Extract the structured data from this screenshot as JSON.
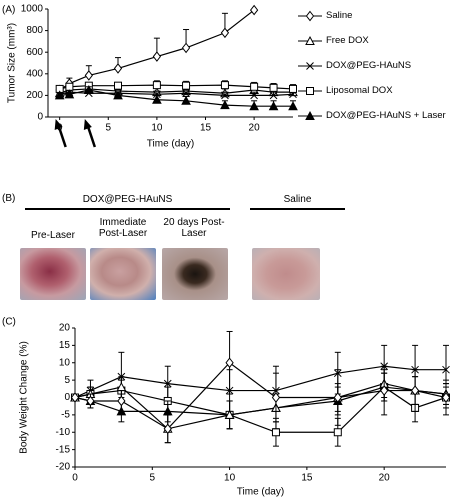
{
  "chart_data": [
    {
      "type": "line",
      "label": "(A)",
      "xlabel": "Time (day)",
      "ylabel": "Tumor Size (mm³)",
      "x": [
        0,
        1,
        3,
        6,
        10,
        13,
        17,
        20,
        22,
        24
      ],
      "xlim": [
        -1.2,
        24
      ],
      "xticks": [
        0,
        5,
        10,
        15,
        20
      ],
      "ylim": [
        0,
        1000
      ],
      "yticks": [
        0,
        200,
        400,
        600,
        800,
        1000
      ],
      "error_direction": "up",
      "legend": true,
      "treatment_days": [
        0,
        3
      ],
      "series": [
        {
          "name": "Saline",
          "color": "#000000",
          "marker": "diamond",
          "values": [
            250,
            310,
            385,
            450,
            560,
            640,
            780,
            990,
            null,
            null
          ],
          "errors": [
            30,
            50,
            90,
            100,
            170,
            170,
            180,
            0,
            null,
            null
          ]
        },
        {
          "name": "Free DOX",
          "color": "#000000",
          "marker": "triangle",
          "values": [
            220,
            250,
            260,
            240,
            230,
            240,
            220,
            250,
            230,
            230
          ],
          "errors": [
            20,
            30,
            30,
            30,
            40,
            40,
            40,
            40,
            40,
            40
          ]
        },
        {
          "name": "DOX@PEG-HAuNS",
          "color": "#000000",
          "marker": "x",
          "values": [
            210,
            230,
            220,
            220,
            210,
            220,
            200,
            200,
            200,
            210
          ],
          "errors": [
            20,
            30,
            30,
            30,
            30,
            30,
            30,
            30,
            30,
            30
          ]
        },
        {
          "name": "Liposomal DOX",
          "color": "#000000",
          "marker": "square",
          "values": [
            260,
            280,
            290,
            290,
            295,
            290,
            295,
            280,
            270,
            260
          ],
          "errors": [
            20,
            30,
            30,
            30,
            40,
            40,
            40,
            40,
            40,
            40
          ]
        },
        {
          "name": "DOX@PEG-HAuNS + Laser",
          "color": "#000000",
          "marker": "triangle-filled",
          "values": [
            200,
            210,
            250,
            200,
            160,
            150,
            110,
            100,
            100,
            100
          ],
          "errors": [
            20,
            20,
            30,
            30,
            40,
            40,
            40,
            50,
            50,
            50
          ]
        }
      ]
    },
    {
      "type": "line",
      "label": "(C)",
      "xlabel": "Time (day)",
      "ylabel": "Body Weight Change (%)",
      "x": [
        0,
        1,
        3,
        6,
        10,
        13,
        17,
        20,
        22,
        24
      ],
      "xlim": [
        0,
        24
      ],
      "xticks": [
        0,
        5,
        10,
        15,
        20
      ],
      "ylim": [
        -20,
        20
      ],
      "yticks": [
        -20,
        -15,
        -10,
        -5,
        0,
        5,
        10,
        15,
        20
      ],
      "error_direction": "both",
      "legend": false,
      "series": [
        {
          "color": "#000000",
          "marker": "x",
          "values": [
            0,
            2,
            6,
            4,
            2,
            2,
            7,
            9,
            8,
            8
          ],
          "errors": [
            0,
            3,
            7,
            5,
            6,
            5,
            6,
            6,
            7,
            7
          ]
        },
        {
          "color": "#000000",
          "marker": "square",
          "values": [
            0,
            1,
            2,
            -1,
            -5,
            -10,
            -10,
            3,
            -3,
            0
          ],
          "errors": [
            0,
            2,
            3,
            4,
            4,
            4,
            4,
            4,
            4,
            3
          ]
        },
        {
          "color": "#000000",
          "marker": "triangle-filled",
          "values": [
            0,
            -1,
            -4,
            -4,
            -5,
            -3,
            -1,
            3,
            2,
            1
          ],
          "errors": [
            0,
            2,
            3,
            3,
            4,
            4,
            4,
            4,
            4,
            3
          ]
        },
        {
          "color": "#000000",
          "marker": "triangle",
          "values": [
            0,
            1,
            3,
            -9,
            -5,
            -3,
            0,
            4,
            2,
            1
          ],
          "errors": [
            0,
            2,
            3,
            4,
            4,
            4,
            4,
            4,
            4,
            3
          ]
        },
        {
          "color": "#000000",
          "marker": "diamond",
          "values": [
            0,
            -1,
            -1,
            -9,
            10,
            0,
            0,
            2,
            2,
            0
          ],
          "errors": [
            0,
            2,
            3,
            4,
            9,
            9,
            8,
            7,
            6,
            5
          ]
        }
      ]
    }
  ],
  "photos": {
    "label": "(B)",
    "groups": [
      {
        "title": "DOX@PEG-HAuNS",
        "items": [
          "Pre-Laser",
          "Immediate Post-Laser",
          "20 days Post-Laser"
        ]
      },
      {
        "title": "Saline",
        "items": []
      }
    ]
  }
}
